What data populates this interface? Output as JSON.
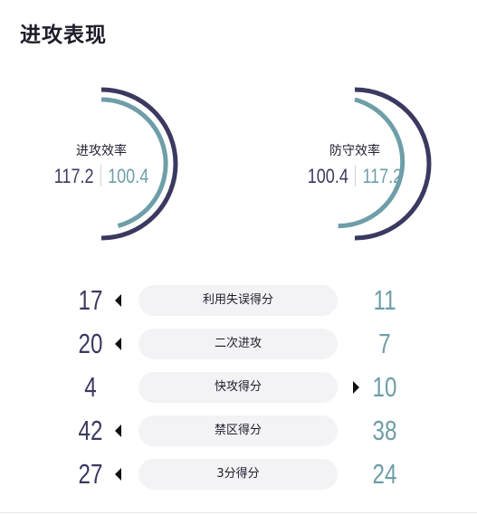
{
  "section": {
    "title": "进攻表现"
  },
  "colors": {
    "home_dark": "#3a3960",
    "away_teal": "#6e9ea8",
    "pill_bg": "#f3f3f5",
    "separator": "#c8c8d0"
  },
  "gauges": [
    {
      "label": "进攻效率",
      "primary": "117.2",
      "secondary": "100.4",
      "outer_color": "#3a3960",
      "inner_color": "#6e9ea8"
    },
    {
      "label": "防守效率",
      "primary": "100.4",
      "secondary": "117.2",
      "outer_color": "#3a3960",
      "inner_color": "#6e9ea8"
    }
  ],
  "stats": [
    {
      "label": "利用失误得分",
      "left": "17",
      "right": "11",
      "leader": "left"
    },
    {
      "label": "二次进攻",
      "left": "20",
      "right": "7",
      "leader": "left"
    },
    {
      "label": "快攻得分",
      "left": "4",
      "right": "10",
      "leader": "right"
    },
    {
      "label": "禁区得分",
      "left": "42",
      "right": "38",
      "leader": "left"
    },
    {
      "label": "3分得分",
      "left": "27",
      "right": "24",
      "leader": "left"
    }
  ]
}
